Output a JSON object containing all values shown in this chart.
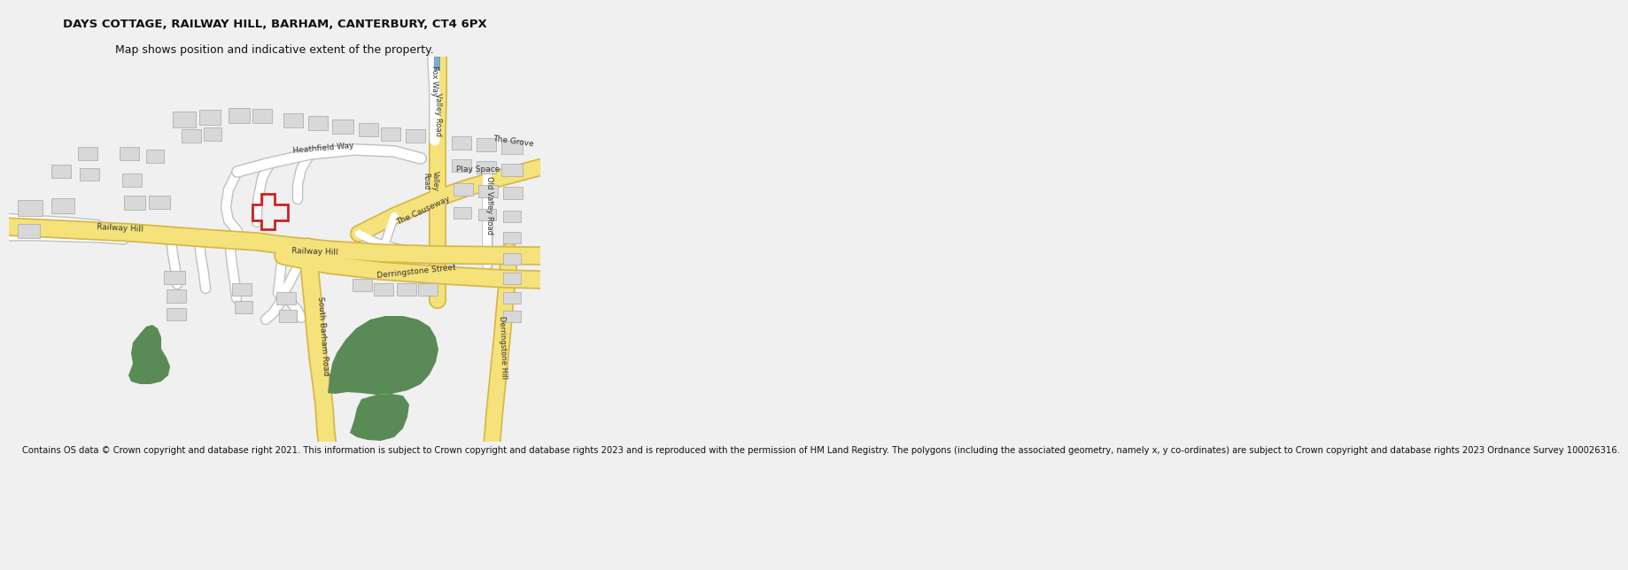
{
  "title_line1": "DAYS COTTAGE, RAILWAY HILL, BARHAM, CANTERBURY, CT4 6PX",
  "title_line2": "Map shows position and indicative extent of the property.",
  "footer_text": "Contains OS data © Crown copyright and database right 2021. This information is subject to Crown copyright and database rights 2023 and is reproduced with the permission of HM Land Registry. The polygons (including the associated geometry, namely x, y co-ordinates) are subject to Crown copyright and database rights 2023 Ordnance Survey 100026316.",
  "bg_color": "#f0f0f0",
  "map_bg": "#ffffff",
  "road_yellow": "#f5e27a",
  "road_yellow_outline": "#d4b84a",
  "road_white": "#ffffff",
  "road_grey_outline": "#c0c0c0",
  "building_fill": "#d8d8d8",
  "building_edge": "#b0b0b0",
  "green_fill": "#5a8a55",
  "red_edge": "#cc2222",
  "blue_fill": "#7baed4",
  "title_fs": 9.5,
  "footer_fs": 7.2
}
